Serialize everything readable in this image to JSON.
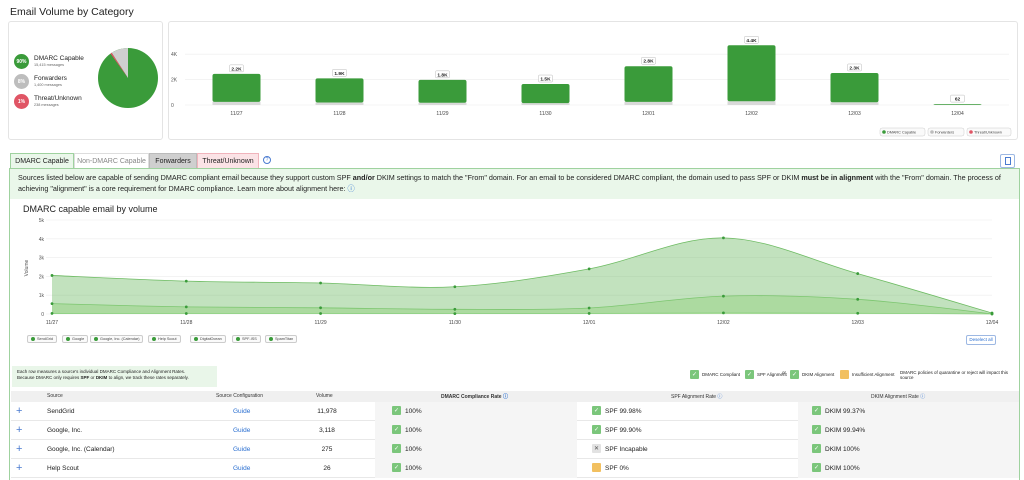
{
  "page_title": "Email Volume by Category",
  "colors": {
    "green": "#3a9b3a",
    "grey": "#cfcfcf",
    "red": "#e05565",
    "light_green": "#a6d89a"
  },
  "donut_legend": [
    {
      "pct": "90%",
      "name": "DMARC Capable",
      "sub": "15,415 messages",
      "color": "#3a9b3a"
    },
    {
      "pct": "8%",
      "name": "Forwarders",
      "sub": "1,400 messages",
      "color": "#bdbdbd"
    },
    {
      "pct": "1%",
      "name": "Threat/Unknown",
      "sub": "238 messages",
      "color": "#e05565"
    }
  ],
  "bar_chart": {
    "y_ticks": [
      "4K",
      "2K",
      "0"
    ],
    "categories": [
      "11/27",
      "11/28",
      "11/29",
      "11/30",
      "12/01",
      "12/02",
      "12/03",
      "12/04"
    ],
    "value_labels": [
      "2.2K",
      "1.9K",
      "1.8K",
      "1.5K",
      "2.8K",
      "4.4K",
      "2.3K",
      "62"
    ],
    "legend": [
      {
        "name": "DMARC Capable",
        "color": "#3a9b3a"
      },
      {
        "name": "Forwarders",
        "color": "#bdbdbd"
      },
      {
        "name": "Threat/Unknown",
        "color": "#e05565"
      }
    ]
  },
  "tabs": [
    {
      "label": "DMARC Capable",
      "active": true
    },
    {
      "label": "Non-DMARC Capable",
      "active": false
    },
    {
      "label": "Forwarders",
      "active": false
    },
    {
      "label": "Threat/Unknown",
      "active": false
    }
  ],
  "info": {
    "p1": "Sources listed below are capable of sending DMARC compliant email because they support custom SPF ",
    "b1": "and/or",
    "p2": " DKIM settings to match the \"From\" domain. For an email to be considered DMARC compliant, the domain used to pass SPF or DKIM ",
    "b2": "must be in alignment",
    "p3": " with the \"From\" domain. The process of achieving \"alignment\" is a core requirement for DMARC compliance. Learn more about alignment here:"
  },
  "area_chart": {
    "title": "DMARC capable email by volume",
    "ylabel": "Volume",
    "y_ticks": [
      "5k",
      "4k",
      "3k",
      "2k",
      "1k",
      "0"
    ],
    "x_labels": [
      "11/27",
      "11/28",
      "11/29",
      "11/30",
      "12/01",
      "12/02",
      "12/03",
      "12/04"
    ],
    "chips": [
      "SendGrid",
      "Google",
      "Google, Inc. (Calendar)",
      "Help Scout",
      "DigitalOcean",
      "SPF-ISS",
      "SpamTitan"
    ],
    "deselect_label": "Deselect all"
  },
  "chart_data": [
    {
      "type": "bar",
      "categories": [
        "11/27",
        "11/28",
        "11/29",
        "11/30",
        "12/01",
        "12/02",
        "12/03",
        "12/04"
      ],
      "series": [
        {
          "name": "DMARC Capable",
          "values": [
            2200,
            1900,
            1800,
            1500,
            2800,
            4400,
            2300,
            62
          ]
        },
        {
          "name": "Forwarders",
          "values": [
            250,
            200,
            180,
            150,
            250,
            300,
            220,
            10
          ]
        }
      ],
      "title": "",
      "ylim": [
        0,
        4800
      ],
      "legend": "bottom-right"
    },
    {
      "type": "area",
      "x": [
        "11/27",
        "11/28",
        "11/29",
        "11/30",
        "12/01",
        "12/02",
        "12/03",
        "12/04"
      ],
      "series": [
        {
          "name": "SendGrid",
          "values": [
            2050,
            1750,
            1650,
            1450,
            2400,
            4050,
            2150,
            50
          ]
        },
        {
          "name": "Google",
          "values": [
            550,
            380,
            330,
            250,
            320,
            950,
            780,
            10
          ]
        },
        {
          "name": "Google, Inc. (Calendar)",
          "values": [
            30,
            25,
            25,
            20,
            30,
            60,
            40,
            2
          ]
        }
      ],
      "title": "DMARC capable email by volume",
      "ylabel": "Volume",
      "ylim": [
        0,
        5000
      ],
      "grid": true
    }
  ],
  "table_note": {
    "l1": "Each row measures a source's individual DMARC Compliance and Alignment Rates.",
    "l2a": "Because DMARC only requires ",
    "l2b": "SPF",
    "l2c": " or ",
    "l2d": "DKIM",
    "l2e": " to align, we track these rates separately."
  },
  "key": {
    "compliant": "DMARC Compliant",
    "spf": "SPF Alignment",
    "or": "or",
    "dkim": "DKIM Alignment",
    "insufficient": "Insufficient Alignment",
    "policy": "DMARC policies of quarantine or reject will impact this source"
  },
  "table": {
    "headers": [
      "Source",
      "Source Configuration",
      "Volume",
      "DMARC Compliance Rate",
      "SPF Alignment Rate",
      "DKIM Alignment Rate"
    ],
    "rows": [
      {
        "source": "SendGrid",
        "config": "Guide",
        "volume": "11,978",
        "dmarc": "100%",
        "spf": "SPF 99.98%",
        "spf_state": "ok",
        "dkim": "DKIM 99.37%"
      },
      {
        "source": "Google, Inc.",
        "config": "Guide",
        "volume": "3,118",
        "dmarc": "100%",
        "spf": "SPF 99.90%",
        "spf_state": "ok",
        "dkim": "DKIM 99.94%"
      },
      {
        "source": "Google, Inc. (Calendar)",
        "config": "Guide",
        "volume": "275",
        "dmarc": "100%",
        "spf": "SPF Incapable",
        "spf_state": "x",
        "dkim": "DKIM 100%"
      },
      {
        "source": "Help Scout",
        "config": "Guide",
        "volume": "26",
        "dmarc": "100%",
        "spf": "SPF 0%",
        "spf_state": "warn",
        "dkim": "DKIM 100%"
      }
    ]
  }
}
